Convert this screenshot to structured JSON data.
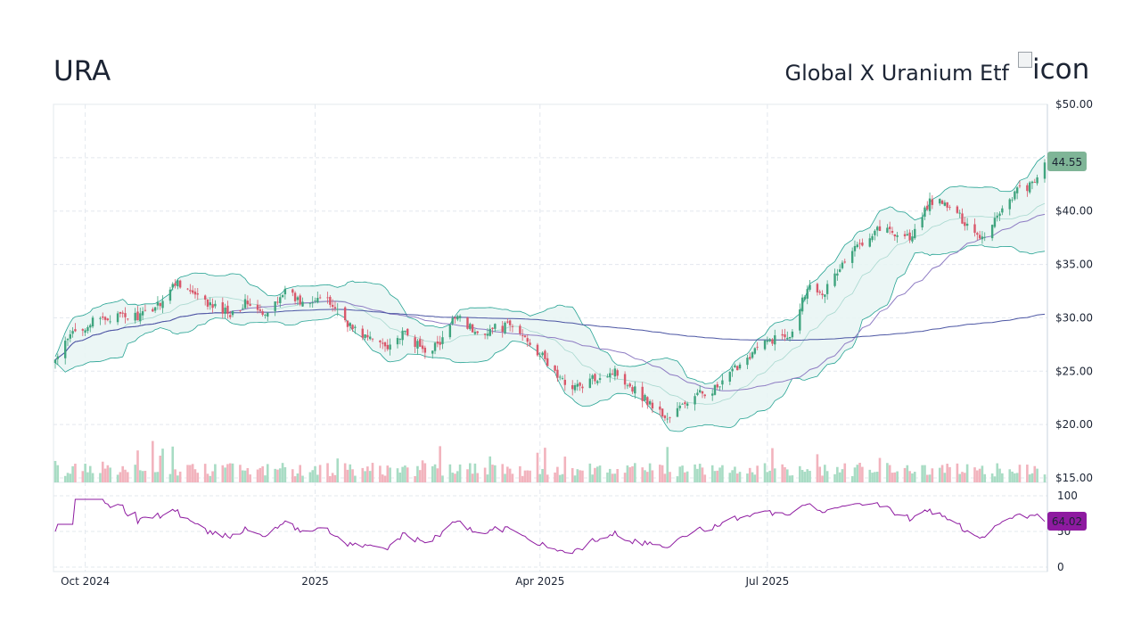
{
  "header": {
    "ticker": "URA",
    "name": "Global X Uranium Etf",
    "logo_alt": "icon"
  },
  "colors": {
    "up": "#3fa47e",
    "down": "#d9576a",
    "band_fill": "#e8f4f3",
    "band_line": "#26a393",
    "ma_short": "#a8d8cf",
    "ma_mid": "#8e7cc3",
    "ma_long": "#4b55a3",
    "rsi": "#8e1aa0",
    "price_badge": "#7fb597",
    "rsi_badge": "#8e1aa0"
  },
  "chart_data": [
    {
      "type": "candlestick",
      "x_ticks": [
        "Oct 2024",
        "2025",
        "Apr 2025",
        "Jul 2025"
      ],
      "y_ticks": [
        "$50.00",
        "$40.00",
        "$35.00",
        "$30.00",
        "$25.00",
        "$20.00",
        "$15.00"
      ],
      "ylim": [
        15,
        50
      ],
      "last_price": 44.55,
      "last_price_label": "44.55",
      "indicators": [
        "bollinger-bands",
        "moving-average-short",
        "moving-average-mid",
        "moving-average-long"
      ],
      "close_path": [
        [
          "2024-09-19",
          26.0
        ],
        [
          "2024-09-26",
          28.6
        ],
        [
          "2024-10-03",
          29.5
        ],
        [
          "2024-10-10",
          30.0
        ],
        [
          "2024-10-17",
          30.1
        ],
        [
          "2024-10-24",
          30.2
        ],
        [
          "2024-10-31",
          31.5
        ],
        [
          "2024-11-07",
          33.5
        ],
        [
          "2024-11-14",
          32.0
        ],
        [
          "2024-11-21",
          31.0
        ],
        [
          "2024-11-28",
          30.5
        ],
        [
          "2024-12-05",
          31.5
        ],
        [
          "2024-12-12",
          30.0
        ],
        [
          "2024-12-19",
          32.5
        ],
        [
          "2024-12-26",
          31.5
        ],
        [
          "2025-01-02",
          32.0
        ],
        [
          "2025-01-09",
          31.0
        ],
        [
          "2025-01-16",
          29.0
        ],
        [
          "2025-01-23",
          28.0
        ],
        [
          "2025-01-30",
          27.5
        ],
        [
          "2025-02-06",
          28.5
        ],
        [
          "2025-02-13",
          27.0
        ],
        [
          "2025-02-20",
          27.5
        ],
        [
          "2025-02-27",
          30.5
        ],
        [
          "2025-03-06",
          28.5
        ],
        [
          "2025-03-13",
          29.0
        ],
        [
          "2025-03-20",
          29.2
        ],
        [
          "2025-03-27",
          28.0
        ],
        [
          "2025-04-03",
          26.0
        ],
        [
          "2025-04-10",
          24.0
        ],
        [
          "2025-04-17",
          23.5
        ],
        [
          "2025-04-24",
          24.5
        ],
        [
          "2025-05-01",
          25.0
        ],
        [
          "2025-05-08",
          23.5
        ],
        [
          "2025-05-15",
          22.0
        ],
        [
          "2025-05-22",
          20.5
        ],
        [
          "2025-05-29",
          22.0
        ],
        [
          "2025-06-05",
          23.0
        ],
        [
          "2025-06-12",
          23.5
        ],
        [
          "2025-06-19",
          25.5
        ],
        [
          "2025-06-26",
          27.0
        ],
        [
          "2025-07-03",
          28.0
        ],
        [
          "2025-07-10",
          28.5
        ],
        [
          "2025-07-17",
          33.0
        ],
        [
          "2025-07-24",
          32.5
        ],
        [
          "2025-07-31",
          35.0
        ],
        [
          "2025-08-07",
          37.0
        ],
        [
          "2025-08-14",
          38.5
        ],
        [
          "2025-08-21",
          38.0
        ],
        [
          "2025-08-28",
          37.5
        ],
        [
          "2025-09-04",
          41.0
        ],
        [
          "2025-09-11",
          40.5
        ],
        [
          "2025-09-18",
          39.0
        ],
        [
          "2025-09-25",
          37.5
        ],
        [
          "2025-10-02",
          40.0
        ],
        [
          "2025-10-09",
          42.0
        ],
        [
          "2025-10-16",
          42.5
        ],
        [
          "2025-10-20",
          44.55
        ]
      ]
    },
    {
      "type": "bar",
      "name": "volume"
    },
    {
      "type": "line",
      "name": "RSI",
      "y_ticks": [
        "100",
        "50",
        "0"
      ],
      "ylim": [
        0,
        100
      ],
      "last_value": 64.02,
      "last_value_label": "64.02"
    }
  ]
}
